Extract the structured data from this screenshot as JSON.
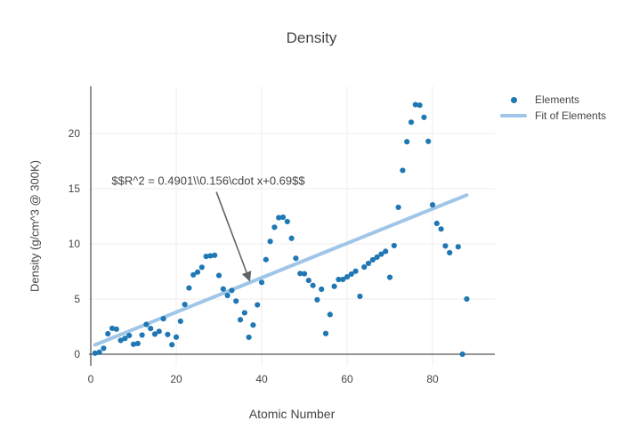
{
  "colors": {
    "marker": "#1f77b4",
    "fit_line": "#9fc5e8",
    "grid": "#ececec",
    "zeroline": "#555555",
    "axis_text": "#444444",
    "title_text": "#444444",
    "arrow": "#636363",
    "background": "#ffffff"
  },
  "chart_data": {
    "type": "scatter",
    "title": "Density",
    "xlabel": "Atomic Number",
    "ylabel": "Density (g/cm^3 @ 300K)",
    "xlim": [
      -0.42,
      94.58
    ],
    "ylim": [
      -1.05,
      24.27
    ],
    "xticks": [
      0,
      20,
      40,
      60,
      80
    ],
    "yticks": [
      0,
      5,
      10,
      15,
      20
    ],
    "grid": true,
    "legend_position": "top-right-outside",
    "series": [
      {
        "name": "Elements",
        "type": "scatter",
        "color": "#1f77b4",
        "x": [
          1,
          2,
          3,
          4,
          5,
          6,
          7,
          8,
          9,
          10,
          11,
          12,
          13,
          14,
          15,
          16,
          17,
          18,
          19,
          20,
          21,
          22,
          23,
          24,
          25,
          26,
          27,
          28,
          29,
          30,
          31,
          32,
          33,
          34,
          35,
          36,
          37,
          38,
          39,
          40,
          41,
          42,
          43,
          44,
          45,
          46,
          47,
          48,
          49,
          50,
          51,
          52,
          53,
          54,
          55,
          56,
          57,
          58,
          59,
          60,
          61,
          62,
          63,
          64,
          65,
          66,
          67,
          68,
          69,
          70,
          71,
          72,
          73,
          74,
          75,
          76,
          77,
          78,
          79,
          80,
          81,
          82,
          83,
          84,
          86,
          87,
          88
        ],
        "y": [
          0.09,
          0.179,
          0.534,
          1.85,
          2.34,
          2.267,
          1.251,
          1.429,
          1.696,
          0.9,
          0.971,
          1.738,
          2.698,
          2.329,
          1.823,
          2.07,
          3.214,
          1.784,
          0.862,
          1.55,
          2.985,
          4.506,
          6.0,
          7.19,
          7.44,
          7.874,
          8.86,
          8.912,
          8.96,
          7.134,
          5.907,
          5.323,
          5.776,
          4.809,
          3.122,
          3.749,
          1.532,
          2.64,
          4.469,
          6.506,
          8.57,
          10.22,
          11.5,
          12.37,
          12.41,
          12.02,
          10.5,
          8.69,
          7.31,
          7.287,
          6.685,
          6.232,
          4.93,
          5.887,
          1.873,
          3.594,
          6.145,
          6.77,
          6.773,
          7.007,
          7.26,
          7.52,
          5.243,
          7.895,
          8.229,
          8.55,
          8.795,
          9.066,
          9.321,
          6.965,
          9.84,
          13.31,
          16.654,
          19.25,
          21.02,
          22.61,
          22.56,
          21.46,
          19.282,
          13.534,
          11.85,
          11.342,
          9.807,
          9.196,
          9.73,
          0.0,
          5.0
        ]
      },
      {
        "name": "Fit of Elements",
        "type": "line",
        "color": "#9fc5e8",
        "x": [
          1,
          88
        ],
        "y": [
          0.846,
          14.418
        ],
        "fit": {
          "slope": 0.156,
          "intercept": 0.69,
          "r_squared": 0.4901
        }
      }
    ],
    "annotation": {
      "text": "$$R^2 = 0.4901\\\\0.156\\cdot x+0.69$$",
      "text_center": [
        27.5,
        15.7
      ],
      "arrow_tail": [
        29.4,
        14.7
      ],
      "arrow_tip": [
        37.1,
        6.75
      ]
    }
  }
}
